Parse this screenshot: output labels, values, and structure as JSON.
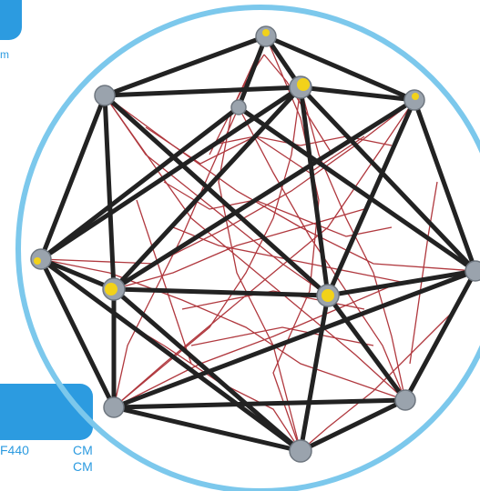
{
  "labels": {
    "top_fragment": "m",
    "dimension_value": "F440",
    "unit_1": "CM",
    "unit_2": "CM"
  },
  "colors": {
    "accent": "#2c9be0",
    "ring": "#7cc8ec",
    "frame": "#222222",
    "net": "#a8232a",
    "joint": "#9aa3ad",
    "joint_yellow": "#f2d21a"
  },
  "product": {
    "image_name": "spherical-rope-climbing-frame"
  }
}
